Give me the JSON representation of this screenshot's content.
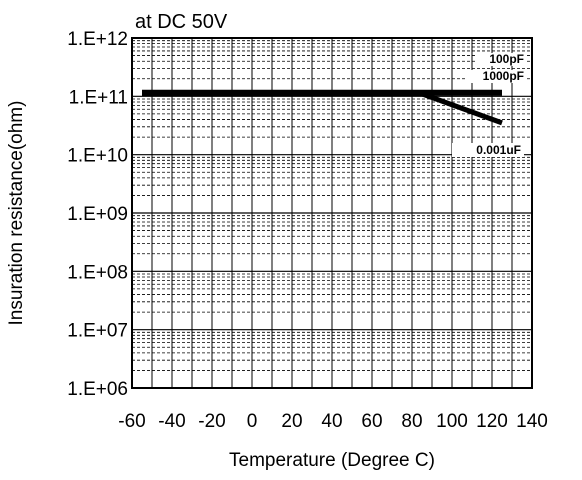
{
  "chart_data": {
    "type": "line",
    "title": "at DC 50V",
    "xlabel": "Temperature (Degree C)",
    "ylabel": "Insuration resistance(ohm)",
    "y_scale": "log",
    "xlim": [
      -60,
      140
    ],
    "ylim": [
      1000000,
      1000000000000
    ],
    "x_ticks": [
      -60,
      -40,
      -20,
      0,
      20,
      40,
      60,
      80,
      100,
      120,
      140
    ],
    "x_tick_labels": [
      "-60",
      "-40",
      "-20",
      "0",
      "20",
      "40",
      "60",
      "80",
      "100",
      "120",
      "140"
    ],
    "y_ticks": [
      1000000,
      10000000,
      100000000,
      1000000000,
      10000000000,
      100000000000,
      1000000000000
    ],
    "y_tick_labels": [
      "1.E+06",
      "1.E+07",
      "1.E+08",
      "1.E+09",
      "1.E+10",
      "1.E+11",
      "1.E+12"
    ],
    "grid": true,
    "series": [
      {
        "name": "100pF",
        "color": "#000000",
        "x": [
          -55,
          125
        ],
        "y": [
          120000000000,
          120000000000
        ]
      },
      {
        "name": "1000pF",
        "color": "#000000",
        "x": [
          -55,
          125
        ],
        "y": [
          110000000000,
          110000000000
        ]
      },
      {
        "name": "0.001uF",
        "color": "#000000",
        "x": [
          -55,
          85,
          125
        ],
        "y": [
          110000000000,
          110000000000,
          35000000000
        ]
      }
    ]
  }
}
